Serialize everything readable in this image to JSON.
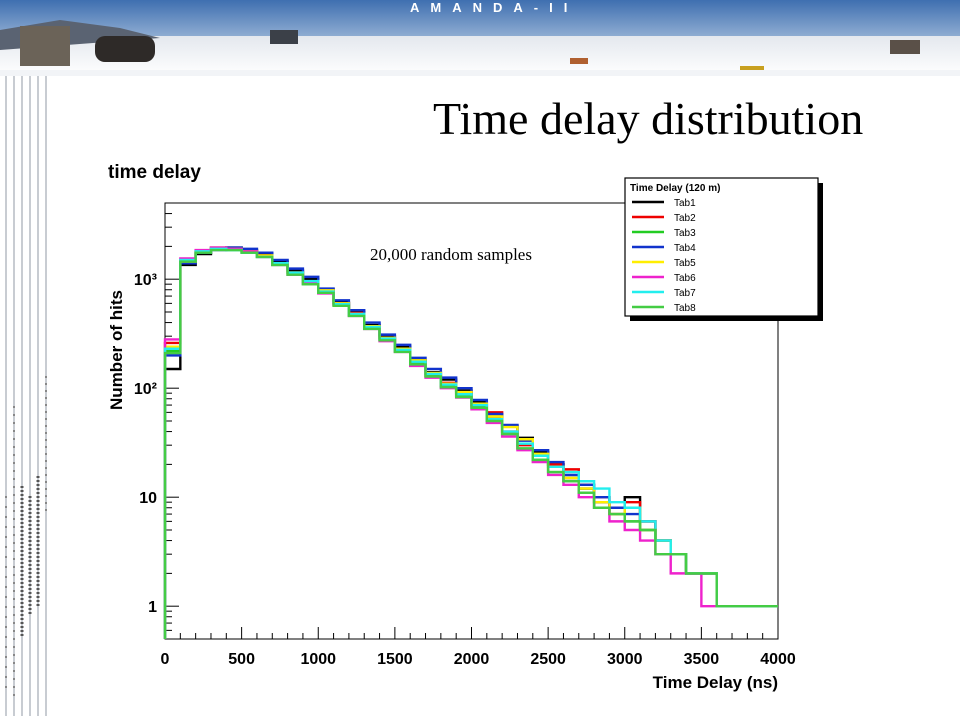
{
  "banner": {
    "text": "AMANDA-II"
  },
  "slide": {
    "title": "Time delay distribution"
  },
  "chart_data": {
    "type": "line",
    "title": "time delay",
    "xlabel": "Time Delay (ns)",
    "ylabel": "Number of hits",
    "annotation": "20,000 random samples",
    "xlim": [
      0,
      4000
    ],
    "ylim": [
      0.5,
      5000
    ],
    "yscale": "log",
    "x_ticks": [
      0,
      500,
      1000,
      1500,
      2000,
      2500,
      3000,
      3500,
      4000
    ],
    "x_tick_labels": [
      "0",
      "500",
      "1000",
      "1500",
      "2000",
      "2500",
      "3000",
      "3500",
      "4000"
    ],
    "y_ticks": [
      1,
      10,
      100,
      1000
    ],
    "y_tick_labels": [
      "1",
      "10",
      "10²",
      "10³"
    ],
    "legend": {
      "title": "Time Delay (120 m)",
      "position": "top-right"
    },
    "bin_width": 100,
    "series": [
      {
        "name": "Tab1",
        "color": "#000000",
        "values": [
          150,
          1350,
          1700,
          1900,
          1950,
          1850,
          1700,
          1450,
          1200,
          1000,
          800,
          610,
          500,
          380,
          300,
          240,
          180,
          140,
          120,
          95,
          75,
          55,
          45,
          35,
          26,
          20,
          15,
          12,
          9,
          7,
          10,
          6,
          4,
          3,
          2,
          2,
          1,
          1,
          1,
          1
        ]
      },
      {
        "name": "Tab2",
        "color": "#ee0000",
        "values": [
          260,
          1500,
          1800,
          1950,
          1900,
          1800,
          1650,
          1400,
          1150,
          950,
          780,
          600,
          490,
          370,
          290,
          230,
          175,
          135,
          112,
          90,
          70,
          60,
          40,
          30,
          24,
          20,
          18,
          13,
          10,
          8,
          9,
          6,
          4,
          3,
          2,
          2,
          1,
          1,
          1,
          1
        ]
      },
      {
        "name": "Tab3",
        "color": "#22cc22",
        "values": [
          220,
          1450,
          1750,
          1900,
          1850,
          1750,
          1600,
          1350,
          1100,
          900,
          760,
          580,
          470,
          360,
          280,
          220,
          170,
          130,
          105,
          85,
          68,
          50,
          38,
          28,
          22,
          17,
          14,
          11,
          8,
          8,
          6,
          5,
          4,
          3,
          2,
          2,
          1,
          1,
          1,
          1
        ]
      },
      {
        "name": "Tab4",
        "color": "#1133cc",
        "values": [
          200,
          1400,
          1750,
          1850,
          1950,
          1900,
          1750,
          1500,
          1250,
          1050,
          820,
          640,
          520,
          400,
          310,
          250,
          190,
          150,
          125,
          100,
          78,
          58,
          46,
          33,
          27,
          21,
          16,
          13,
          10,
          8,
          7,
          5,
          4,
          3,
          2,
          2,
          1,
          1,
          1,
          1
        ]
      },
      {
        "name": "Tab5",
        "color": "#ffee00",
        "values": [
          240,
          1450,
          1800,
          1900,
          1900,
          1800,
          1650,
          1400,
          1150,
          950,
          790,
          600,
          480,
          370,
          290,
          230,
          180,
          138,
          110,
          92,
          72,
          55,
          44,
          34,
          25,
          19,
          15,
          12,
          9,
          7,
          8,
          5,
          4,
          3,
          2,
          2,
          1,
          1,
          1,
          1
        ]
      },
      {
        "name": "Tab6",
        "color": "#ee22cc",
        "values": [
          280,
          1550,
          1850,
          1950,
          1900,
          1800,
          1600,
          1350,
          1100,
          930,
          740,
          580,
          460,
          350,
          270,
          215,
          160,
          125,
          100,
          82,
          64,
          48,
          36,
          27,
          21,
          16,
          13,
          10,
          8,
          6,
          5,
          4,
          3,
          2,
          2,
          1,
          1,
          1,
          1,
          1
        ]
      },
      {
        "name": "Tab7",
        "color": "#22eeee",
        "values": [
          230,
          1500,
          1800,
          1900,
          1850,
          1750,
          1600,
          1400,
          1150,
          960,
          770,
          590,
          480,
          365,
          285,
          225,
          175,
          135,
          108,
          88,
          70,
          52,
          40,
          31,
          24,
          19,
          17,
          14,
          12,
          9,
          8,
          6,
          4,
          3,
          2,
          2,
          1,
          1,
          1,
          1
        ]
      },
      {
        "name": "Tab8",
        "color": "#44cc44",
        "values": [
          210,
          1450,
          1750,
          1850,
          1850,
          1750,
          1600,
          1350,
          1100,
          900,
          750,
          570,
          460,
          350,
          275,
          215,
          165,
          128,
          102,
          83,
          66,
          50,
          38,
          28,
          22,
          17,
          14,
          11,
          8,
          7,
          6,
          5,
          3,
          3,
          2,
          2,
          1,
          1,
          1,
          1
        ]
      }
    ]
  }
}
